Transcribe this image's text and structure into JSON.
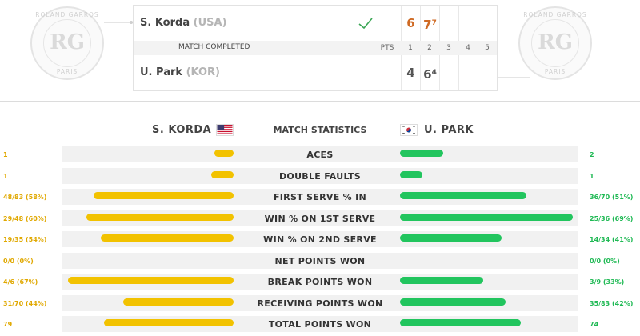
{
  "logos": {
    "left": {
      "arc_top": "ROLAND GARROS",
      "monogram": "RG",
      "arc_bottom": "PARIS"
    },
    "right": {
      "arc_top": "ROLAND GARROS",
      "monogram": "RG",
      "arc_bottom": "PARIS"
    }
  },
  "scoreboard": {
    "player1": {
      "name": "S. Korda",
      "country": "(USA)",
      "winner": true,
      "sets": [
        {
          "games": "6",
          "tiebreak": ""
        },
        {
          "games": "7",
          "tiebreak": "7"
        }
      ]
    },
    "player2": {
      "name": "U. Park",
      "country": "(KOR)",
      "winner": false,
      "sets": [
        {
          "games": "4",
          "tiebreak": ""
        },
        {
          "games": "6",
          "tiebreak": "4"
        }
      ]
    },
    "status": "MATCH COMPLETED",
    "header": {
      "pts": "PTS",
      "set1": "1",
      "set2": "2",
      "set3": "3",
      "set4": "4",
      "set5": "5"
    }
  },
  "stats": {
    "title": "MATCH STATISTICS",
    "player1": {
      "name": "S. KORDA",
      "flag": "usa-flag",
      "color": "#f2c200"
    },
    "player2": {
      "name": "U. PARK",
      "flag": "kor-flag",
      "color": "#22c55e"
    },
    "rows": [
      {
        "label": "ACES",
        "left": "1",
        "right": "2",
        "left_fill": 0.11,
        "right_fill": 0.25
      },
      {
        "label": "DOUBLE FAULTS",
        "left": "1",
        "right": "1",
        "left_fill": 0.13,
        "right_fill": 0.13
      },
      {
        "label": "FIRST SERVE % IN",
        "left": "48/83 (58%)",
        "right": "36/70 (51%)",
        "left_fill": 0.81,
        "right_fill": 0.73
      },
      {
        "label": "WIN % ON 1ST SERVE",
        "left": "29/48 (60%)",
        "right": "25/36 (69%)",
        "left_fill": 0.85,
        "right_fill": 1.0
      },
      {
        "label": "WIN % ON 2ND SERVE",
        "left": "19/35 (54%)",
        "right": "14/34 (41%)",
        "left_fill": 0.77,
        "right_fill": 0.59
      },
      {
        "label": "NET POINTS WON",
        "left": "0/0 (0%)",
        "right": "0/0 (0%)",
        "left_fill": 0,
        "right_fill": 0
      },
      {
        "label": "BREAK POINTS WON",
        "left": "4/6 (67%)",
        "right": "3/9 (33%)",
        "left_fill": 0.96,
        "right_fill": 0.48
      },
      {
        "label": "RECEIVING POINTS WON",
        "left": "31/70 (44%)",
        "right": "35/83 (42%)",
        "left_fill": 0.64,
        "right_fill": 0.61
      },
      {
        "label": "TOTAL POINTS WON",
        "left": "79",
        "right": "74",
        "left_fill": 0.75,
        "right_fill": 0.7
      }
    ]
  }
}
